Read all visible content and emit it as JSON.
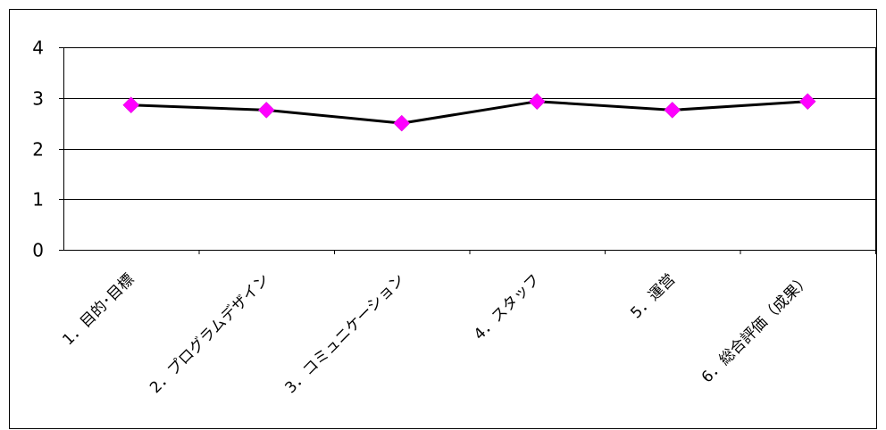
{
  "chart_data": {
    "type": "line",
    "categories": [
      "1．目的･目標",
      "2．プログラムデザイン",
      "3．コミュニケーション",
      "4．スタッフ",
      "5．運営",
      "6．総合評価（成果）"
    ],
    "values": [
      2.86,
      2.76,
      2.5,
      2.93,
      2.76,
      2.93
    ],
    "ylim": [
      0,
      4
    ],
    "yticks": [
      0,
      1,
      2,
      3,
      4
    ],
    "grid": true,
    "legend": "none",
    "line_color": "#000000",
    "marker_color": "#ff00ff",
    "marker": "diamond"
  }
}
